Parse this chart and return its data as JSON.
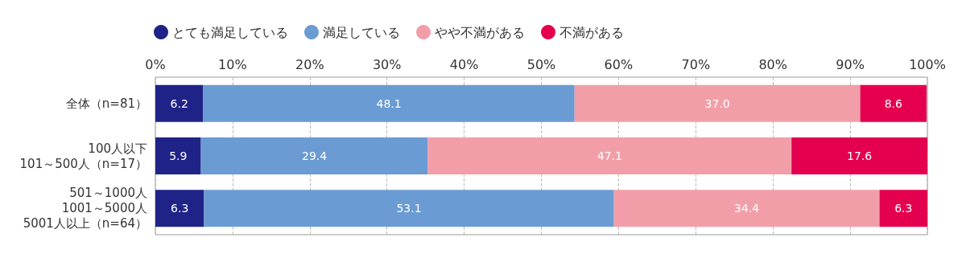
{
  "chart_data": {
    "type": "bar",
    "orientation": "horizontal",
    "stacked": true,
    "categories": [
      "全体（n=81）",
      "100人以下\n101～500人（n=17）",
      "501～1000人\n1001～5000人\n5001人以上（n=64）"
    ],
    "series": [
      {
        "name": "とても満足している",
        "color": "#1f2388",
        "values": [
          6.2,
          5.9,
          6.3
        ]
      },
      {
        "name": "満足している",
        "color": "#6b9bd3",
        "values": [
          48.1,
          29.4,
          53.1
        ]
      },
      {
        "name": "やや不満がある",
        "color": "#f29ea8",
        "values": [
          37.0,
          47.1,
          34.4
        ]
      },
      {
        "name": "不満がある",
        "color": "#e5004f",
        "values": [
          8.6,
          17.6,
          6.3
        ]
      }
    ],
    "xlim": [
      0,
      100
    ],
    "xticks": [
      {
        "value": 0,
        "label": "0%"
      },
      {
        "value": 10,
        "label": "10%"
      },
      {
        "value": 20,
        "label": "20%"
      },
      {
        "value": 30,
        "label": "30%"
      },
      {
        "value": 40,
        "label": "40%"
      },
      {
        "value": 50,
        "label": "50%"
      },
      {
        "value": 60,
        "label": "60%"
      },
      {
        "value": 70,
        "label": "70%"
      },
      {
        "value": 80,
        "label": "80%"
      },
      {
        "value": 90,
        "label": "90%"
      },
      {
        "value": 100,
        "label": "100%"
      }
    ],
    "value_labels": [
      [
        "6.2",
        "5.9",
        "6.3"
      ],
      [
        "48.1",
        "29.4",
        "53.1"
      ],
      [
        "37.0",
        "47.1",
        "34.4"
      ],
      [
        "8.6",
        "17.6",
        "6.3"
      ]
    ],
    "grid": "x",
    "legend": "top left"
  }
}
